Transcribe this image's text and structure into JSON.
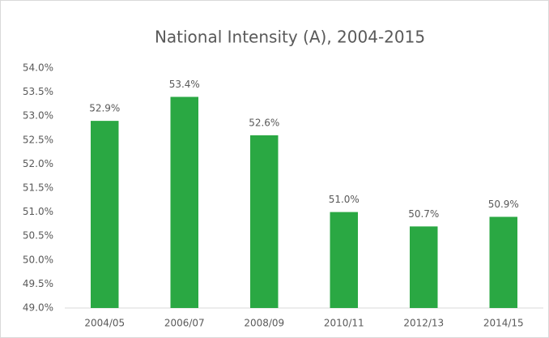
{
  "chart_data": {
    "type": "bar",
    "title": "National Intensity (A), 2004-2015",
    "categories": [
      "2004/05",
      "2006/07",
      "2008/09",
      "2010/11",
      "2012/13",
      "2014/15"
    ],
    "values": [
      52.9,
      53.4,
      52.6,
      51.0,
      50.7,
      50.9
    ],
    "value_labels": [
      "52.9%",
      "53.4%",
      "52.6%",
      "51.0%",
      "50.7%",
      "50.9%"
    ],
    "color": "#2aa843",
    "ylim": [
      49,
      54
    ],
    "yticks": [
      {
        "value": 49,
        "label": "49.0%"
      },
      {
        "value": 49.5,
        "label": "49.5%"
      },
      {
        "value": 50,
        "label": "50.0%"
      },
      {
        "value": 50.5,
        "label": "50.5%"
      },
      {
        "value": 51,
        "label": "51.0%"
      },
      {
        "value": 51.5,
        "label": "51.5%"
      },
      {
        "value": 52,
        "label": "52.0%"
      },
      {
        "value": 52.5,
        "label": "52.5%"
      },
      {
        "value": 53,
        "label": "53.0%"
      },
      {
        "value": 53.5,
        "label": "53.5%"
      },
      {
        "value": 54,
        "label": "54.0%"
      }
    ],
    "grid": false
  }
}
